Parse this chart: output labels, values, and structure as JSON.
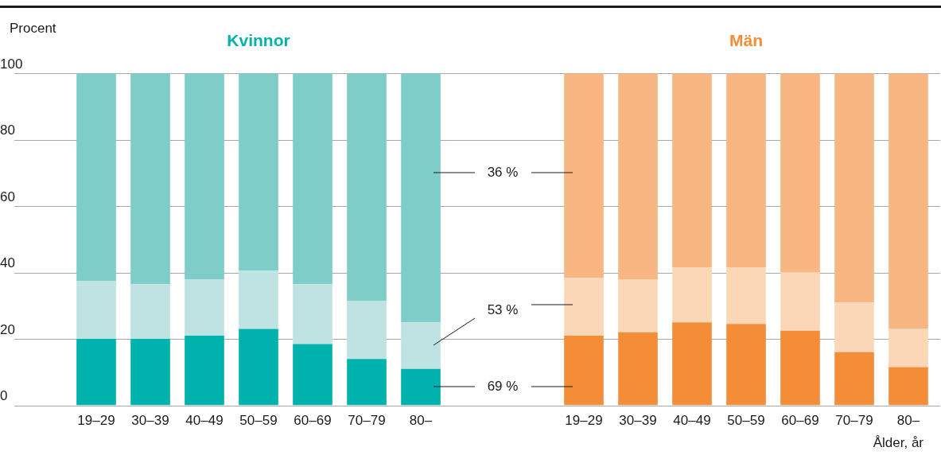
{
  "chart_data": [
    {
      "type": "bar",
      "title": "Kvinnor",
      "ylabel": "Procent",
      "categories": [
        "19–29",
        "30–39",
        "40–49",
        "50–59",
        "60–69",
        "70–79",
        "80–"
      ],
      "stacked": true,
      "ylim": [
        0,
        100
      ],
      "yticks": [
        0,
        20,
        40,
        60,
        80,
        100
      ],
      "grid": "y",
      "series": [
        {
          "color": "#00b2ad",
          "values": [
            20,
            20,
            21,
            23,
            18.5,
            14,
            11
          ]
        },
        {
          "color": "#bfe3e3",
          "values": [
            17.5,
            16.5,
            17,
            17.5,
            18,
            17.5,
            14
          ]
        },
        {
          "color": "#7fcdc9",
          "values": [
            62.5,
            63.5,
            62,
            59.5,
            63.5,
            68.5,
            75
          ]
        }
      ],
      "annotations": [
        "36 %",
        "53 %",
        "69 %"
      ]
    },
    {
      "type": "bar",
      "title": "Män",
      "xlabel": "Ålder, år",
      "categories": [
        "19–29",
        "30–39",
        "40–49",
        "50–59",
        "60–69",
        "70–79",
        "80–"
      ],
      "stacked": true,
      "ylim": [
        0,
        100
      ],
      "yticks": [
        0,
        20,
        40,
        60,
        80,
        100
      ],
      "grid": "y",
      "tick_labels": "x",
      "series": [
        {
          "color": "#f48d38",
          "values": [
            21,
            22,
            25,
            24.5,
            22.5,
            16,
            11.5
          ]
        },
        {
          "color": "#fcd7b7",
          "values": [
            17.5,
            16,
            16.5,
            17,
            17.5,
            15,
            11.5
          ]
        },
        {
          "color": "#f8b683",
          "values": [
            61.5,
            62,
            58.5,
            58.5,
            60,
            69,
            77
          ]
        }
      ]
    }
  ]
}
